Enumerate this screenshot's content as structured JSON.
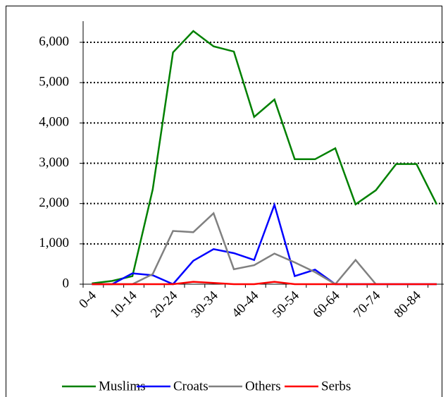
{
  "chart_data": {
    "type": "line",
    "categories": [
      "0-4",
      null,
      "10-14",
      null,
      "20-24",
      null,
      "30-34",
      null,
      "40-44",
      null,
      "50-54",
      null,
      "60-64",
      null,
      "70-74",
      null,
      "80-84",
      null
    ],
    "series": [
      {
        "name": "Muslims",
        "color": "#008000",
        "values": [
          20,
          80,
          200,
          2350,
          5750,
          6280,
          5900,
          5770,
          4150,
          4580,
          3100,
          3100,
          3370,
          1980,
          2330,
          2980,
          2980,
          1980
        ]
      },
      {
        "name": "Croats",
        "color": "#0000ff",
        "values": [
          0,
          0,
          270,
          220,
          0,
          580,
          870,
          770,
          600,
          1970,
          200,
          360,
          0,
          0,
          0,
          0,
          0,
          0
        ]
      },
      {
        "name": "Others",
        "color": "#808080",
        "values": [
          0,
          0,
          0,
          250,
          1320,
          1290,
          1760,
          370,
          470,
          760,
          540,
          300,
          0,
          600,
          0,
          null,
          null,
          null
        ]
      },
      {
        "name": "Serbs",
        "color": "#ff0000",
        "values": [
          0,
          0,
          0,
          0,
          0,
          60,
          30,
          0,
          0,
          60,
          0,
          0,
          0,
          0,
          0,
          0,
          0,
          0
        ]
      }
    ],
    "ylim": [
      0,
      6000
    ],
    "yticks": [
      0,
      {
        "value": 1000,
        "label": "1,000"
      },
      {
        "value": 2000,
        "label": "2,000"
      },
      {
        "value": 3000,
        "label": "3,000"
      },
      {
        "value": 4000,
        "label": "4,000"
      },
      {
        "value": 5000,
        "label": "5,000"
      },
      {
        "value": 6000,
        "label": "6,000"
      }
    ],
    "grid": true,
    "legend": "bottom"
  }
}
